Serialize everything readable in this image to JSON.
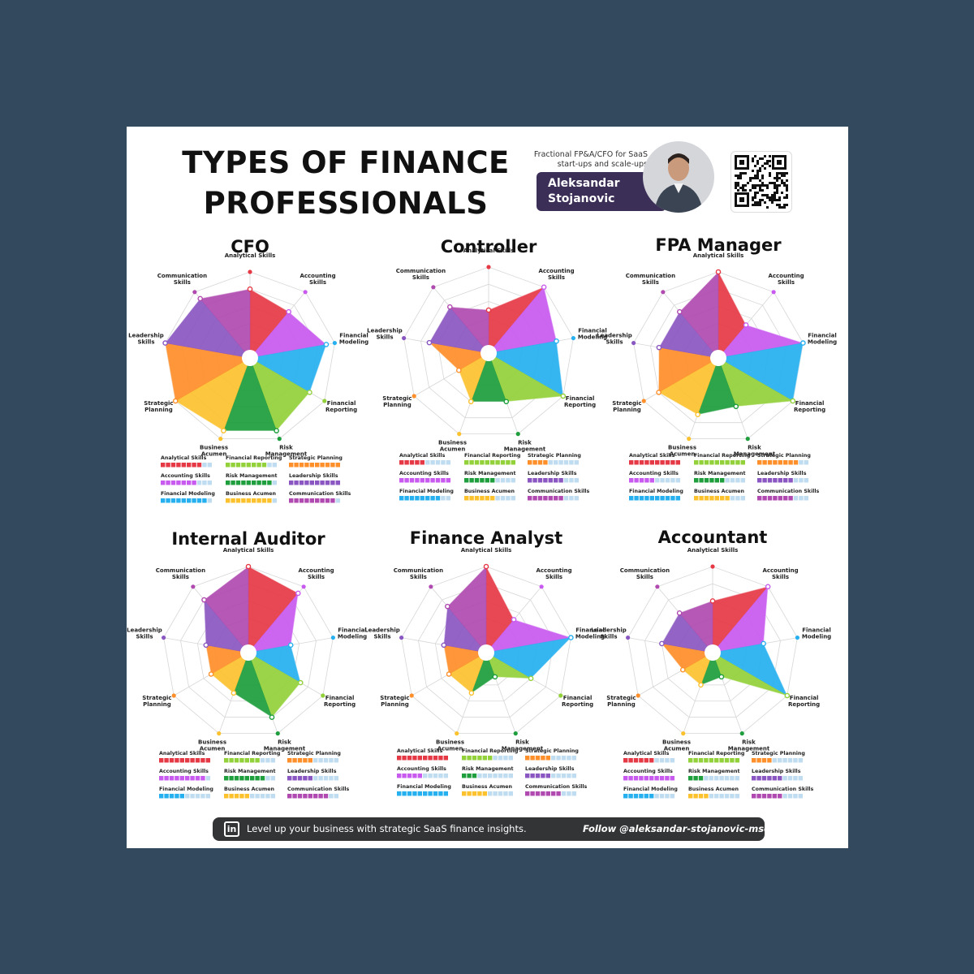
{
  "header": {
    "title_line1": "TYPES OF FINANCE",
    "title_line2": "PROFESSIONALS",
    "tagline_line1": "Fractional FP&A/CFO for SaaS",
    "tagline_line2": "start-ups and scale-ups",
    "author_first": "Aleksandar",
    "author_last": "Stojanovic"
  },
  "footer": {
    "icon_text": "in",
    "text": "Level up your business with strategic SaaS finance insights.",
    "follow": "Follow @aleksandar-stojanovic-msc"
  },
  "skills": [
    {
      "label": "Analytical Skills",
      "label_lines": [
        "Analytical Skills"
      ],
      "color": "#e63946"
    },
    {
      "label": "Accounting Skills",
      "label_lines": [
        "Accounting",
        "Skills"
      ],
      "color": "#c85af0"
    },
    {
      "label": "Financial Modeling",
      "label_lines": [
        "Financial",
        "Modeling"
      ],
      "color": "#26b0f0"
    },
    {
      "label": "Financial Reporting",
      "label_lines": [
        "Financial",
        "Reporting"
      ],
      "color": "#93d13a"
    },
    {
      "label": "Risk Management",
      "label_lines": [
        "Risk",
        "Management"
      ],
      "color": "#1e9e3c"
    },
    {
      "label": "Business Acumen",
      "label_lines": [
        "Business",
        "Acumen"
      ],
      "color": "#fcc22e"
    },
    {
      "label": "Strategic Planning",
      "label_lines": [
        "Strategic",
        "Planning"
      ],
      "color": "#ff8f2a"
    },
    {
      "label": "Leadership Skills",
      "label_lines": [
        "Leadership",
        "Skills"
      ],
      "color": "#8a56c2"
    },
    {
      "label": "Communication Skills",
      "label_lines": [
        "Communication",
        "Skills"
      ],
      "color": "#b04ab0"
    }
  ],
  "chart_data": [
    {
      "type": "radar",
      "title": "CFO",
      "max": 10,
      "values": [
        8,
        7,
        9,
        8,
        9,
        9,
        10,
        10,
        9
      ]
    },
    {
      "type": "radar",
      "title": "Controller",
      "max": 10,
      "values": [
        5,
        10,
        8,
        10,
        6,
        6,
        4,
        7,
        7
      ]
    },
    {
      "type": "radar",
      "title": "FPA Manager",
      "max": 10,
      "values": [
        10,
        5,
        10,
        10,
        6,
        7,
        8,
        7,
        7
      ]
    },
    {
      "type": "radar",
      "title": "Internal Auditor",
      "max": 10,
      "values": [
        10,
        9,
        5,
        7,
        8,
        5,
        5,
        5,
        8
      ]
    },
    {
      "type": "radar",
      "title": "Finance Analyst",
      "max": 10,
      "values": [
        10,
        5,
        10,
        6,
        3,
        5,
        5,
        5,
        7
      ]
    },
    {
      "type": "radar",
      "title": "Accountant",
      "max": 10,
      "values": [
        6,
        10,
        6,
        10,
        3,
        4,
        4,
        6,
        6
      ]
    }
  ]
}
